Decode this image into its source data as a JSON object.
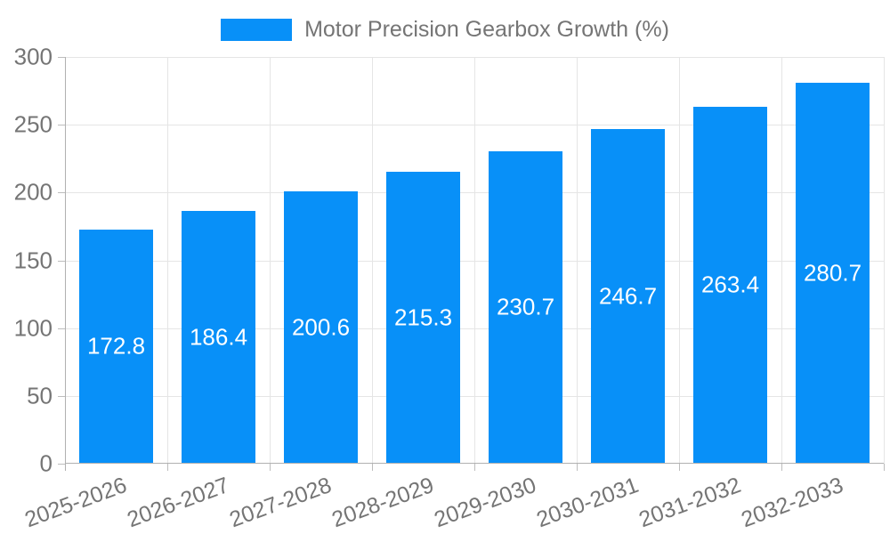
{
  "chart_data": {
    "type": "bar",
    "title": "Motor Precision Gearbox Growth (%)",
    "categories": [
      "2025-2026",
      "2026-2027",
      "2027-2028",
      "2028-2029",
      "2029-2030",
      "2030-2031",
      "2031-2032",
      "2032-2033"
    ],
    "values": [
      172.8,
      186.4,
      200.6,
      215.3,
      230.7,
      246.7,
      263.4,
      280.7
    ],
    "value_labels": [
      "172.8",
      "186.4",
      "200.6",
      "215.3",
      "230.7",
      "246.7",
      "263.4",
      "280.7"
    ],
    "xlabel": "",
    "ylabel": "",
    "ylim": [
      0,
      300
    ],
    "yticks": [
      0,
      50,
      100,
      150,
      200,
      250,
      300
    ],
    "grid": "on",
    "legend_position": "top-center",
    "value_label_position": "inside-center",
    "x_label_rotation_deg": -20,
    "colors": {
      "bar": "#0890F8",
      "axis": "#B0B0B0",
      "tick": "#BDBDBD",
      "grid": "#E5E5E5",
      "text": "#757575",
      "value_label": "#FFFFFF",
      "background": "#FFFFFF"
    }
  }
}
